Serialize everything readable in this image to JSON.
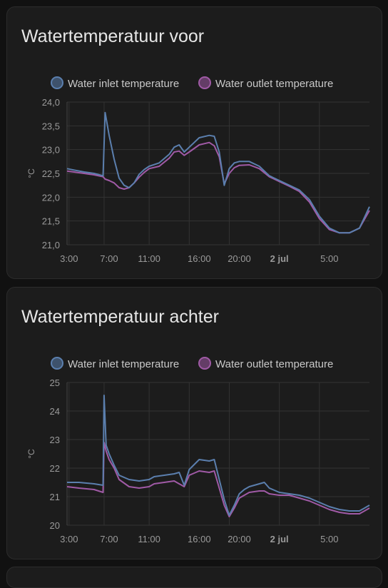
{
  "theme": {
    "inlet_color": "#5b7fae",
    "outlet_color": "#a05aa6",
    "grid_color": "#333333",
    "axis_text_color": "#9a9a9a"
  },
  "cards": [
    {
      "title": "Watertemperatuur voor",
      "chart_data": {
        "type": "line",
        "ylabel": "°C",
        "y_ticks": [
          "24,0",
          "23,5",
          "23,0",
          "22,5",
          "22,0",
          "21,5",
          "21,0"
        ],
        "ylim": [
          21.0,
          24.0
        ],
        "x_ticks": [
          {
            "label": "3:00",
            "t": 3,
            "bold": false
          },
          {
            "label": "7:00",
            "t": 7,
            "bold": false
          },
          {
            "label": "11:00",
            "t": 11,
            "bold": false
          },
          {
            "label": "16:00",
            "t": 16,
            "bold": false
          },
          {
            "label": "20:00",
            "t": 20,
            "bold": false
          },
          {
            "label": "2 jul",
            "t": 24,
            "bold": true
          },
          {
            "label": "5:00",
            "t": 29,
            "bold": false
          }
        ],
        "x_gridlines": [
          3,
          6.5,
          11,
          15,
          19,
          24,
          28
        ],
        "xlim": [
          2.8,
          33
        ],
        "legend_position": "top",
        "series": [
          {
            "name": "Water inlet temperature",
            "key": "inlet",
            "points": [
              [
                2.8,
                22.6
              ],
              [
                3.5,
                22.57
              ],
              [
                4.5,
                22.53
              ],
              [
                5.5,
                22.5
              ],
              [
                6.4,
                22.45
              ],
              [
                6.6,
                23.78
              ],
              [
                7.0,
                23.3
              ],
              [
                7.5,
                22.8
              ],
              [
                8.0,
                22.4
              ],
              [
                8.5,
                22.25
              ],
              [
                9.0,
                22.2
              ],
              [
                9.5,
                22.3
              ],
              [
                10.0,
                22.48
              ],
              [
                10.5,
                22.58
              ],
              [
                11.0,
                22.65
              ],
              [
                12.0,
                22.72
              ],
              [
                13.0,
                22.9
              ],
              [
                13.5,
                23.05
              ],
              [
                14.0,
                23.1
              ],
              [
                14.5,
                22.95
              ],
              [
                15.0,
                23.05
              ],
              [
                16.0,
                23.25
              ],
              [
                17.0,
                23.3
              ],
              [
                17.5,
                23.28
              ],
              [
                18.0,
                22.95
              ],
              [
                18.5,
                22.25
              ],
              [
                19.0,
                22.6
              ],
              [
                19.5,
                22.72
              ],
              [
                20.0,
                22.75
              ],
              [
                21.0,
                22.75
              ],
              [
                22.0,
                22.65
              ],
              [
                23.0,
                22.45
              ],
              [
                24.0,
                22.35
              ],
              [
                25.0,
                22.25
              ],
              [
                26.0,
                22.15
              ],
              [
                27.0,
                21.95
              ],
              [
                28.0,
                21.6
              ],
              [
                29.0,
                21.35
              ],
              [
                30.0,
                21.25
              ],
              [
                31.0,
                21.25
              ],
              [
                32.0,
                21.35
              ],
              [
                33.0,
                21.8
              ]
            ]
          },
          {
            "name": "Water outlet temperature",
            "key": "outlet",
            "points": [
              [
                2.8,
                22.55
              ],
              [
                3.5,
                22.53
              ],
              [
                4.5,
                22.5
              ],
              [
                5.5,
                22.47
              ],
              [
                6.4,
                22.43
              ],
              [
                6.6,
                22.38
              ],
              [
                7.0,
                22.35
              ],
              [
                7.5,
                22.3
              ],
              [
                8.0,
                22.2
              ],
              [
                8.5,
                22.17
              ],
              [
                9.0,
                22.2
              ],
              [
                9.5,
                22.3
              ],
              [
                10.0,
                22.42
              ],
              [
                10.5,
                22.52
              ],
              [
                11.0,
                22.6
              ],
              [
                12.0,
                22.65
              ],
              [
                13.0,
                22.82
              ],
              [
                13.5,
                22.95
              ],
              [
                14.0,
                22.97
              ],
              [
                14.5,
                22.88
              ],
              [
                15.0,
                22.95
              ],
              [
                16.0,
                23.1
              ],
              [
                17.0,
                23.15
              ],
              [
                17.5,
                23.08
              ],
              [
                18.0,
                22.85
              ],
              [
                18.5,
                22.28
              ],
              [
                19.0,
                22.5
              ],
              [
                19.5,
                22.62
              ],
              [
                20.0,
                22.67
              ],
              [
                21.0,
                22.68
              ],
              [
                22.0,
                22.6
              ],
              [
                23.0,
                22.43
              ],
              [
                24.0,
                22.33
              ],
              [
                25.0,
                22.23
              ],
              [
                26.0,
                22.12
              ],
              [
                27.0,
                21.9
              ],
              [
                28.0,
                21.55
              ],
              [
                29.0,
                21.32
              ],
              [
                30.0,
                21.25
              ],
              [
                31.0,
                21.25
              ],
              [
                32.0,
                21.35
              ],
              [
                33.0,
                21.72
              ]
            ]
          }
        ]
      }
    },
    {
      "title": "Watertemperatuur achter",
      "chart_data": {
        "type": "line",
        "ylabel": "°C",
        "y_ticks": [
          "25",
          "24",
          "23",
          "22",
          "21",
          "20"
        ],
        "ylim": [
          20,
          25
        ],
        "x_ticks": [
          {
            "label": "3:00",
            "t": 3,
            "bold": false
          },
          {
            "label": "7:00",
            "t": 7,
            "bold": false
          },
          {
            "label": "11:00",
            "t": 11,
            "bold": false
          },
          {
            "label": "16:00",
            "t": 16,
            "bold": false
          },
          {
            "label": "20:00",
            "t": 20,
            "bold": false
          },
          {
            "label": "2 jul",
            "t": 24,
            "bold": true
          },
          {
            "label": "5:00",
            "t": 29,
            "bold": false
          }
        ],
        "x_gridlines": [
          3,
          6.5,
          11,
          15,
          19,
          24,
          28
        ],
        "xlim": [
          2.8,
          33
        ],
        "legend_position": "top",
        "series": [
          {
            "name": "Water inlet temperature",
            "key": "inlet",
            "points": [
              [
                2.8,
                21.5
              ],
              [
                4.0,
                21.5
              ],
              [
                5.5,
                21.45
              ],
              [
                6.4,
                21.4
              ],
              [
                6.5,
                24.55
              ],
              [
                6.7,
                22.8
              ],
              [
                7.0,
                22.5
              ],
              [
                7.5,
                22.1
              ],
              [
                8.0,
                21.75
              ],
              [
                9.0,
                21.6
              ],
              [
                10.0,
                21.55
              ],
              [
                11.0,
                21.6
              ],
              [
                11.5,
                21.7
              ],
              [
                12.5,
                21.75
              ],
              [
                13.5,
                21.8
              ],
              [
                14.0,
                21.85
              ],
              [
                14.5,
                21.4
              ],
              [
                15.0,
                21.95
              ],
              [
                16.0,
                22.3
              ],
              [
                17.0,
                22.25
              ],
              [
                17.5,
                22.3
              ],
              [
                18.0,
                21.6
              ],
              [
                18.5,
                20.9
              ],
              [
                19.0,
                20.35
              ],
              [
                19.5,
                20.7
              ],
              [
                20.0,
                21.1
              ],
              [
                20.5,
                21.25
              ],
              [
                21.0,
                21.35
              ],
              [
                22.0,
                21.45
              ],
              [
                22.5,
                21.5
              ],
              [
                23.0,
                21.3
              ],
              [
                24.0,
                21.15
              ],
              [
                25.0,
                21.1
              ],
              [
                26.0,
                21.05
              ],
              [
                27.0,
                20.95
              ],
              [
                28.0,
                20.8
              ],
              [
                29.0,
                20.65
              ],
              [
                30.0,
                20.55
              ],
              [
                31.0,
                20.5
              ],
              [
                32.0,
                20.5
              ],
              [
                33.0,
                20.7
              ]
            ]
          },
          {
            "name": "Water outlet temperature",
            "key": "outlet",
            "points": [
              [
                2.8,
                21.35
              ],
              [
                4.0,
                21.3
              ],
              [
                5.5,
                21.25
              ],
              [
                6.4,
                21.15
              ],
              [
                6.5,
                22.9
              ],
              [
                6.7,
                22.6
              ],
              [
                7.0,
                22.3
              ],
              [
                7.5,
                22.0
              ],
              [
                8.0,
                21.6
              ],
              [
                9.0,
                21.35
              ],
              [
                10.0,
                21.3
              ],
              [
                11.0,
                21.35
              ],
              [
                11.5,
                21.45
              ],
              [
                12.5,
                21.5
              ],
              [
                13.5,
                21.55
              ],
              [
                14.0,
                21.45
              ],
              [
                14.5,
                21.35
              ],
              [
                15.0,
                21.75
              ],
              [
                16.0,
                21.9
              ],
              [
                17.0,
                21.85
              ],
              [
                17.5,
                21.9
              ],
              [
                18.0,
                21.3
              ],
              [
                18.5,
                20.7
              ],
              [
                19.0,
                20.3
              ],
              [
                19.5,
                20.6
              ],
              [
                20.0,
                20.95
              ],
              [
                20.5,
                21.05
              ],
              [
                21.0,
                21.15
              ],
              [
                22.0,
                21.2
              ],
              [
                22.5,
                21.2
              ],
              [
                23.0,
                21.1
              ],
              [
                24.0,
                21.05
              ],
              [
                25.0,
                21.05
              ],
              [
                26.0,
                20.95
              ],
              [
                27.0,
                20.85
              ],
              [
                28.0,
                20.7
              ],
              [
                29.0,
                20.55
              ],
              [
                30.0,
                20.45
              ],
              [
                31.0,
                20.4
              ],
              [
                32.0,
                20.4
              ],
              [
                33.0,
                20.6
              ]
            ]
          }
        ]
      }
    }
  ]
}
